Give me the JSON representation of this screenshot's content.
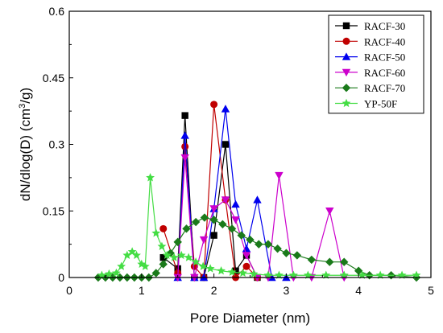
{
  "chart_data": {
    "type": "line",
    "title": "",
    "xlabel": "Pore Diameter (nm)",
    "ylabel_main": "dN/dlog(D) (cm",
    "ylabel_sup": "3",
    "ylabel_tail": "/g)",
    "xlim": [
      0,
      5
    ],
    "ylim": [
      0,
      0.6
    ],
    "xticks": [
      0,
      1,
      2,
      3,
      4,
      5
    ],
    "yticks": [
      0,
      0.15,
      0.3,
      0.45,
      0.6
    ],
    "ytick_labels": [
      "0",
      "0.15",
      "0.3",
      "0.45",
      "0.6"
    ],
    "grid": false,
    "legend_position": "top-right",
    "series": [
      {
        "name": "RACF-30",
        "color": "#000000",
        "marker": "square",
        "x": [
          1.3,
          1.5,
          1.6,
          1.73,
          1.86,
          2.0,
          2.16,
          2.3,
          2.45,
          2.6
        ],
        "y": [
          0.045,
          0.02,
          0.365,
          0.0,
          0.0,
          0.095,
          0.3,
          0.015,
          0.05,
          0.0
        ]
      },
      {
        "name": "RACF-40",
        "color": "#c00000",
        "marker": "circle",
        "x": [
          1.3,
          1.5,
          1.6,
          1.73,
          1.86,
          2.0,
          2.16,
          2.3,
          2.45,
          2.6
        ],
        "y": [
          0.11,
          0.01,
          0.295,
          0.025,
          0.0,
          0.39,
          0.175,
          0.0,
          0.025,
          0.0
        ]
      },
      {
        "name": "RACF-50",
        "color": "#0000ee",
        "marker": "triangle-up",
        "x": [
          1.5,
          1.6,
          1.73,
          1.86,
          2.0,
          2.16,
          2.3,
          2.45,
          2.6,
          2.8,
          3.0
        ],
        "y": [
          0.0,
          0.32,
          0.0,
          0.0,
          0.155,
          0.38,
          0.165,
          0.065,
          0.175,
          0.0,
          0.0
        ]
      },
      {
        "name": "RACF-60",
        "color": "#cc00cc",
        "marker": "triangle-down",
        "x": [
          1.5,
          1.6,
          1.73,
          1.86,
          2.0,
          2.16,
          2.3,
          2.45,
          2.6,
          2.75,
          2.9,
          3.1,
          3.35,
          3.6,
          3.8
        ],
        "y": [
          0.0,
          0.27,
          0.0,
          0.085,
          0.155,
          0.175,
          0.13,
          0.05,
          0.0,
          0.0,
          0.23,
          0.0,
          0.0,
          0.15,
          0.0
        ]
      },
      {
        "name": "RACF-70",
        "color": "#1a7a1a",
        "marker": "diamond",
        "x": [
          0.4,
          0.5,
          0.6,
          0.7,
          0.8,
          0.9,
          1.0,
          1.1,
          1.2,
          1.3,
          1.4,
          1.5,
          1.62,
          1.75,
          1.87,
          2.0,
          2.12,
          2.25,
          2.38,
          2.5,
          2.62,
          2.75,
          2.88,
          3.0,
          3.15,
          3.35,
          3.6,
          3.8,
          4.0,
          4.15,
          4.45,
          4.8
        ],
        "y": [
          0.0,
          0.0,
          0.0,
          0.0,
          0.0,
          0.0,
          0.0,
          0.0,
          0.01,
          0.03,
          0.055,
          0.08,
          0.11,
          0.125,
          0.135,
          0.13,
          0.12,
          0.11,
          0.095,
          0.085,
          0.075,
          0.075,
          0.065,
          0.055,
          0.05,
          0.04,
          0.035,
          0.035,
          0.015,
          0.005,
          0.005,
          0.0
        ]
      },
      {
        "name": "YP-50F",
        "color": "#44dd44",
        "marker": "star",
        "x": [
          0.45,
          0.55,
          0.65,
          0.72,
          0.8,
          0.87,
          0.93,
          1.0,
          1.05,
          1.12,
          1.2,
          1.28,
          1.35,
          1.45,
          1.55,
          1.65,
          1.75,
          1.85,
          1.95,
          2.1,
          2.25,
          2.4,
          2.55,
          2.75,
          2.9,
          3.1,
          3.3,
          3.55,
          3.8,
          4.05,
          4.3,
          4.6,
          4.8
        ],
        "y": [
          0.005,
          0.008,
          0.01,
          0.025,
          0.05,
          0.058,
          0.05,
          0.03,
          0.025,
          0.225,
          0.1,
          0.07,
          0.05,
          0.045,
          0.05,
          0.045,
          0.035,
          0.025,
          0.02,
          0.015,
          0.012,
          0.01,
          0.008,
          0.005,
          0.005,
          0.005,
          0.005,
          0.005,
          0.005,
          0.005,
          0.005,
          0.005,
          0.005
        ]
      }
    ]
  }
}
